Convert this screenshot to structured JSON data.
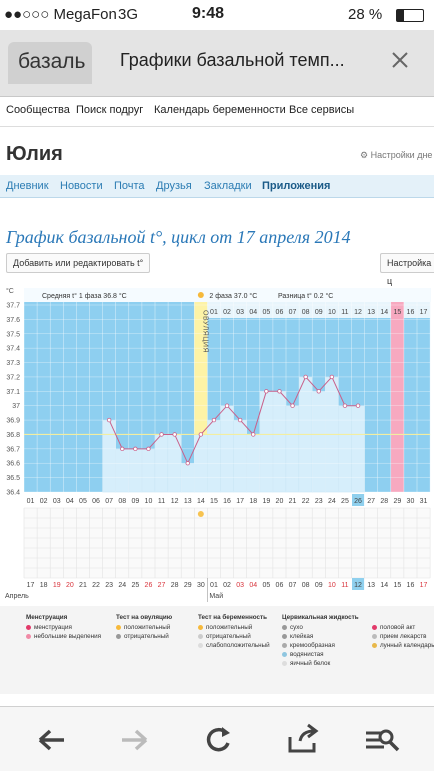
{
  "status": {
    "carrier": "●●○○○ MegaFon",
    "network": "3G",
    "time": "9:48",
    "battery": "28 %"
  },
  "browser": {
    "tab": "базаль",
    "title": "Графики базальной темп..."
  },
  "nav": [
    "Сообщества",
    "Поиск подруг",
    "Календарь беременности",
    "Все сервисы"
  ],
  "user": {
    "name": "Юлия",
    "settings": "Настройки дне"
  },
  "menu": {
    "items": [
      "Дневник",
      "Новости",
      "Почта",
      "Друзья",
      "Закладки",
      "Приложения"
    ],
    "active": 5
  },
  "chart": {
    "title": "График базальной t°, цикл от 17 апреля 2014",
    "buttons": [
      "Добавить или редактировать t°",
      "Настройка ц"
    ],
    "unit": "°C",
    "phase1": "Средняя t° 1 фаза 36.8 °C",
    "phase2": "2 фаза 37.0 °C",
    "difference": "Разница t° 0.2 °C",
    "ovulation": "ОВУЛЯЦИЯ",
    "ylim": [
      36.4,
      37.7
    ],
    "yticks": [
      37.7,
      37.6,
      37.5,
      37.4,
      37.3,
      37.2,
      37.1,
      37,
      36.9,
      36.8,
      36.7,
      36.6,
      36.5,
      36.4
    ],
    "cycle_days": [
      "01",
      "02",
      "03",
      "04",
      "05",
      "06",
      "07",
      "08",
      "09",
      "10",
      "11",
      "12",
      "13",
      "14",
      "15",
      "16",
      "17",
      "18",
      "19",
      "20",
      "21",
      "22",
      "23",
      "24",
      "25",
      "26",
      "27",
      "28",
      "29",
      "30",
      "31"
    ],
    "phase2_start": 15,
    "phase2_days": [
      "01",
      "02",
      "03",
      "04",
      "05",
      "06",
      "07",
      "08",
      "09",
      "10",
      "11",
      "12",
      "13",
      "14",
      "15",
      "16",
      "17"
    ],
    "dates": [
      {
        "label": "17"
      },
      {
        "label": "18"
      },
      {
        "label": "19",
        "weekend": true
      },
      {
        "label": "20",
        "weekend": true
      },
      {
        "label": "21"
      },
      {
        "label": "22"
      },
      {
        "label": "23"
      },
      {
        "label": "24"
      },
      {
        "label": "25"
      },
      {
        "label": "26",
        "weekend": true
      },
      {
        "label": "27",
        "weekend": true
      },
      {
        "label": "28"
      },
      {
        "label": "29"
      },
      {
        "label": "30"
      },
      {
        "label": "01"
      },
      {
        "label": "02"
      },
      {
        "label": "03",
        "weekend": true
      },
      {
        "label": "04",
        "weekend": true
      },
      {
        "label": "05"
      },
      {
        "label": "06"
      },
      {
        "label": "07"
      },
      {
        "label": "08"
      },
      {
        "label": "09"
      },
      {
        "label": "10",
        "weekend": true
      },
      {
        "label": "11",
        "weekend": true
      },
      {
        "label": "12"
      },
      {
        "label": "13"
      },
      {
        "label": "14"
      },
      {
        "label": "15"
      },
      {
        "label": "16"
      },
      {
        "label": "17",
        "weekend": true
      }
    ],
    "months": [
      {
        "label": "Апрель",
        "day": 1
      },
      {
        "label": "Май",
        "day": 15
      }
    ],
    "ovulation_day": 14,
    "ovulation_test_day": 14,
    "pink_day": 29,
    "today_day": 26,
    "coverline": 36.8,
    "temperatures": {
      "days": [
        7,
        8,
        9,
        10,
        11,
        12,
        13,
        14,
        15,
        16,
        17,
        18,
        19,
        20,
        21,
        22,
        23,
        24,
        25,
        26
      ],
      "values": [
        36.9,
        36.7,
        36.7,
        36.7,
        36.8,
        36.8,
        36.6,
        36.8,
        36.9,
        37.0,
        36.9,
        36.8,
        37.1,
        37.1,
        37.0,
        37.2,
        37.1,
        37.2,
        37.0,
        37.0
      ]
    }
  },
  "legend": [
    {
      "title": "Менструация",
      "items": [
        "менструация",
        "небольшие выделения"
      ]
    },
    {
      "title": "Тест на овуляцию",
      "items": [
        "положительный",
        "отрицательный"
      ]
    },
    {
      "title": "Тест на беременность",
      "items": [
        "положительный",
        "отрицательный",
        "слабоположительный"
      ]
    },
    {
      "title": "Цервикальная жидкость",
      "items": [
        "сухо",
        "клейкая",
        "кремообразная",
        "водянистая",
        "яичный белок"
      ]
    },
    {
      "title": "",
      "items": [
        "половой акт",
        "прием лекарств",
        "лунный календарь"
      ]
    }
  ]
}
